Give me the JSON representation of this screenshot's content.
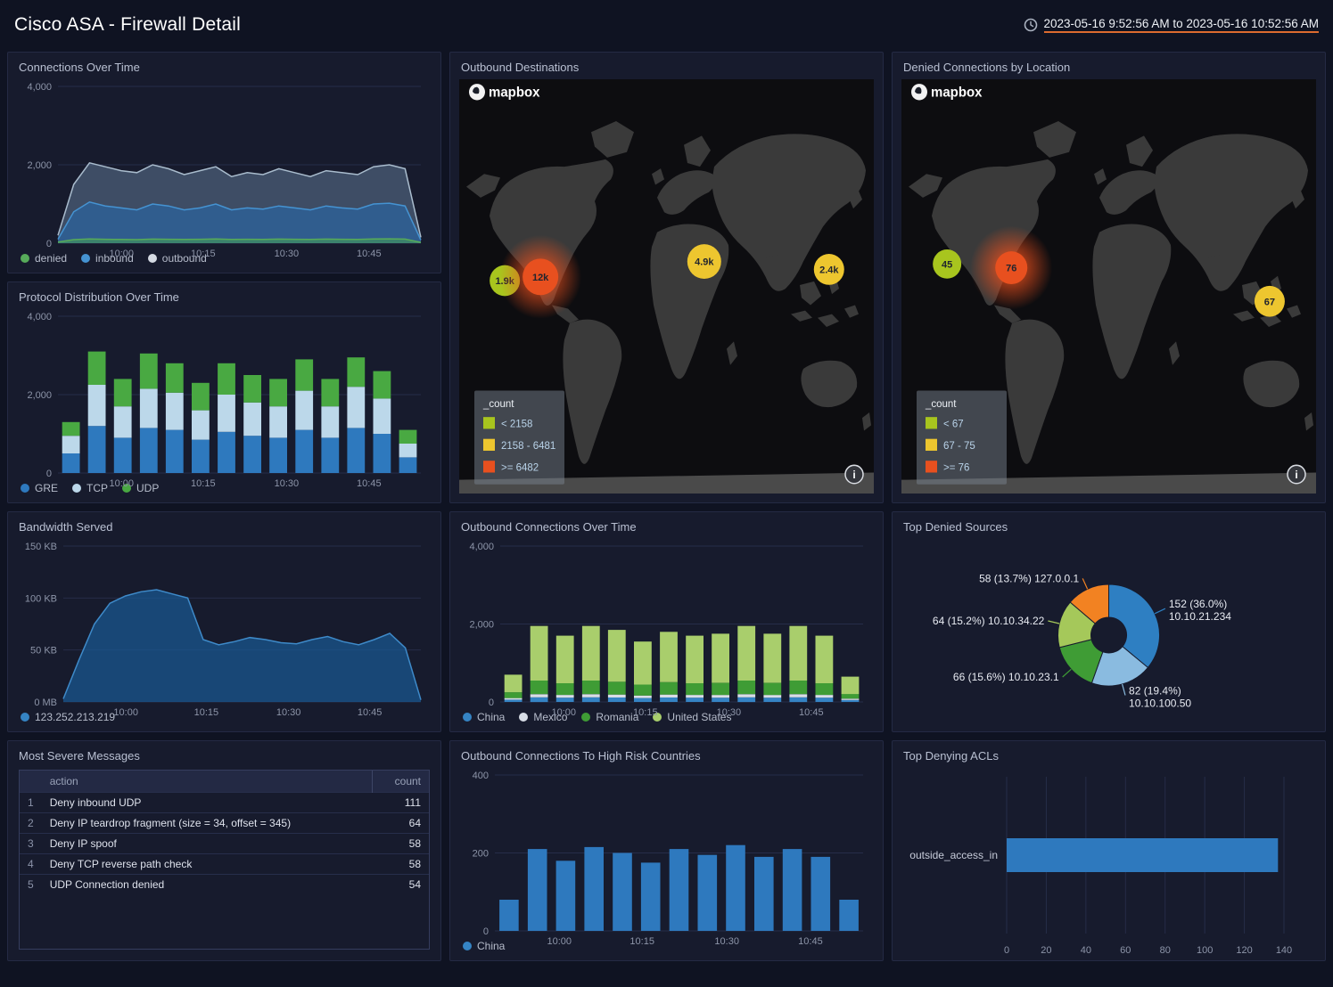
{
  "header": {
    "title": "Cisco ASA - Firewall Detail",
    "time_range": "2023-05-16 9:52:56 AM to 2023-05-16 10:52:56 AM"
  },
  "panels": {
    "connections_over_time": {
      "title": "Connections Over Time"
    },
    "outbound_destinations": {
      "title": "Outbound Destinations"
    },
    "denied_connections_by_location": {
      "title": "Denied Connections by Location"
    },
    "protocol_distribution_over_time": {
      "title": "Protocol Distribution Over Time"
    },
    "bandwidth_served": {
      "title": "Bandwidth Served"
    },
    "outbound_connections_over_time": {
      "title": "Outbound Connections Over Time"
    },
    "top_denied_sources": {
      "title": "Top Denied Sources"
    },
    "most_severe_messages": {
      "title": "Most Severe Messages"
    },
    "outbound_high_risk": {
      "title": "Outbound Connections To High Risk Countries"
    },
    "top_denying_acls": {
      "title": "Top Denying ACLs"
    }
  },
  "chart_data": {
    "connections_over_time": {
      "type": "area",
      "ylim": [
        0,
        4000
      ],
      "y_ticks": [
        {
          "v": 0,
          "label": "0"
        },
        {
          "v": 2000,
          "label": "2,000"
        },
        {
          "v": 4000,
          "label": "4,000"
        }
      ],
      "x_ticks": [
        {
          "f": 0.175,
          "label": "10:00"
        },
        {
          "f": 0.4,
          "label": "10:15"
        },
        {
          "f": 0.63,
          "label": "10:30"
        },
        {
          "f": 0.857,
          "label": "10:45"
        }
      ],
      "series": [
        {
          "name": "outbound",
          "color": "#a9bccd",
          "fill": "rgba(110,140,170,0.45)",
          "values": [
            200,
            1500,
            2050,
            1950,
            1850,
            1800,
            2000,
            1900,
            1750,
            1850,
            1950,
            1700,
            1800,
            1750,
            1900,
            1800,
            1700,
            1850,
            1800,
            1750,
            1950,
            2000,
            1900,
            150
          ]
        },
        {
          "name": "inbound",
          "color": "#4593d2",
          "fill": "rgba(40,105,170,0.6)",
          "values": [
            100,
            800,
            1050,
            950,
            900,
            850,
            1000,
            950,
            850,
            900,
            1000,
            850,
            900,
            870,
            950,
            900,
            850,
            950,
            900,
            870,
            1000,
            1020,
            950,
            80
          ]
        },
        {
          "name": "denied",
          "color": "#57ab5a",
          "fill": "rgba(70,160,80,0.55)",
          "values": [
            30,
            90,
            110,
            100,
            95,
            90,
            105,
            100,
            95,
            100,
            110,
            95,
            100,
            98,
            105,
            100,
            95,
            105,
            100,
            98,
            110,
            112,
            105,
            20
          ]
        }
      ],
      "legend": [
        {
          "label": "denied",
          "color": "#57ab5a"
        },
        {
          "label": "inbound",
          "color": "#4593d2"
        },
        {
          "label": "outbound",
          "color": "#d5dae3"
        }
      ]
    },
    "protocol_distribution_over_time": {
      "type": "stacked-bar",
      "ylim": [
        0,
        4000
      ],
      "y_ticks": [
        {
          "v": 0,
          "label": "0"
        },
        {
          "v": 2000,
          "label": "2,000"
        },
        {
          "v": 4000,
          "label": "4,000"
        }
      ],
      "x_ticks": [
        {
          "f": 0.175,
          "label": "10:00"
        },
        {
          "f": 0.4,
          "label": "10:15"
        },
        {
          "f": 0.63,
          "label": "10:30"
        },
        {
          "f": 0.857,
          "label": "10:45"
        }
      ],
      "series": [
        {
          "name": "GRE",
          "color": "#2e79be",
          "values": [
            500,
            1200,
            900,
            1150,
            1100,
            850,
            1050,
            950,
            900,
            1100,
            900,
            1150,
            1000,
            400
          ]
        },
        {
          "name": "TCP",
          "color": "#bcd8ea",
          "values": [
            450,
            1050,
            800,
            1000,
            950,
            750,
            950,
            850,
            800,
            1000,
            800,
            1050,
            900,
            350
          ]
        },
        {
          "name": "UDP",
          "color": "#49a942",
          "values": [
            350,
            850,
            700,
            900,
            750,
            700,
            800,
            700,
            700,
            800,
            700,
            750,
            700,
            350
          ]
        }
      ],
      "legend": [
        {
          "label": "GRE",
          "color": "#2e79be"
        },
        {
          "label": "TCP",
          "color": "#bcd8ea"
        },
        {
          "label": "UDP",
          "color": "#49a942"
        }
      ]
    },
    "bandwidth_served": {
      "type": "area",
      "margin_left": 52,
      "ylim": [
        0,
        150
      ],
      "y_ticks": [
        {
          "v": 0,
          "label": "0 MB"
        },
        {
          "v": 50,
          "label": "50 KB"
        },
        {
          "v": 100,
          "label": "100 KB"
        },
        {
          "v": 150,
          "label": "150 KB"
        }
      ],
      "x_ticks": [
        {
          "f": 0.175,
          "label": "10:00"
        },
        {
          "f": 0.4,
          "label": "10:15"
        },
        {
          "f": 0.63,
          "label": "10:30"
        },
        {
          "f": 0.857,
          "label": "10:45"
        }
      ],
      "series": [
        {
          "name": "123.252.213.219",
          "color": "#3e8ac9",
          "fill": "rgba(25,90,150,0.7)",
          "values": [
            3,
            40,
            75,
            95,
            102,
            106,
            108,
            104,
            100,
            60,
            55,
            58,
            62,
            60,
            57,
            56,
            60,
            63,
            58,
            55,
            60,
            66,
            52,
            2
          ]
        }
      ],
      "legend": [
        {
          "label": "123.252.213.219",
          "color": "#3584c4"
        }
      ]
    },
    "outbound_connections_over_time": {
      "type": "stacked-bar",
      "ylim": [
        0,
        4000
      ],
      "y_ticks": [
        {
          "v": 0,
          "label": "0"
        },
        {
          "v": 2000,
          "label": "2,000"
        },
        {
          "v": 4000,
          "label": "4,000"
        }
      ],
      "x_ticks": [
        {
          "f": 0.175,
          "label": "10:00"
        },
        {
          "f": 0.4,
          "label": "10:15"
        },
        {
          "f": 0.63,
          "label": "10:30"
        },
        {
          "f": 0.857,
          "label": "10:45"
        }
      ],
      "series": [
        {
          "name": "China",
          "color": "#3584c4",
          "values": [
            60,
            120,
            110,
            120,
            115,
            100,
            115,
            110,
            110,
            120,
            110,
            120,
            110,
            50
          ]
        },
        {
          "name": "Mexico",
          "color": "#d8dde6",
          "values": [
            40,
            80,
            70,
            80,
            75,
            65,
            75,
            70,
            70,
            80,
            70,
            80,
            70,
            35
          ]
        },
        {
          "name": "Romania",
          "color": "#3f9c35",
          "values": [
            150,
            350,
            300,
            350,
            330,
            280,
            320,
            300,
            310,
            350,
            310,
            350,
            300,
            120
          ]
        },
        {
          "name": "United States",
          "color": "#a9ce6c",
          "values": [
            450,
            1400,
            1220,
            1400,
            1330,
            1105,
            1290,
            1220,
            1260,
            1400,
            1260,
            1400,
            1220,
            445
          ]
        }
      ],
      "legend": [
        {
          "label": "China",
          "color": "#3584c4"
        },
        {
          "label": "Mexico",
          "color": "#d8dde6"
        },
        {
          "label": "Romania",
          "color": "#3f9c35"
        },
        {
          "label": "United States",
          "color": "#a9ce6c"
        }
      ]
    },
    "top_denied_sources": {
      "type": "donut",
      "slices": [
        {
          "name": "10.10.21.234",
          "value": 152,
          "pct": "36.0%",
          "value_label": "152 (36.0%)",
          "color": "#2e7fc2"
        },
        {
          "name": "10.10.100.50",
          "value": 82,
          "pct": "19.4%",
          "value_label": "82 (19.4%)",
          "color": "#8abbe0"
        },
        {
          "name": "10.10.23.1",
          "value": 66,
          "pct": "15.6%",
          "value_label": "66 (15.6%)",
          "color": "#3f9c35"
        },
        {
          "name": "10.10.34.22",
          "value": 64,
          "pct": "15.2%",
          "value_label": "64 (15.2%)",
          "color": "#a5c85a"
        },
        {
          "name": "127.0.0.1",
          "value": 58,
          "pct": "13.7%",
          "value_label": "58 (13.7%)",
          "color": "#f28222"
        }
      ]
    },
    "most_severe_messages": {
      "type": "table",
      "columns": [
        "action",
        "count"
      ],
      "rows": [
        {
          "rank": 1,
          "action": "Deny inbound UDP",
          "count": 111
        },
        {
          "rank": 2,
          "action": "Deny IP teardrop fragment (size = 34, offset = 345)",
          "count": 64
        },
        {
          "rank": 3,
          "action": "Deny IP spoof",
          "count": 58
        },
        {
          "rank": 4,
          "action": "Deny TCP reverse path check",
          "count": 58
        },
        {
          "rank": 5,
          "action": "UDP Connection denied",
          "count": 54
        }
      ]
    },
    "outbound_high_risk": {
      "type": "stacked-bar",
      "margin_left": 40,
      "ylim": [
        0,
        400
      ],
      "y_ticks": [
        {
          "v": 0,
          "label": "0"
        },
        {
          "v": 200,
          "label": "200"
        },
        {
          "v": 400,
          "label": "400"
        }
      ],
      "x_ticks": [
        {
          "f": 0.175,
          "label": "10:00"
        },
        {
          "f": 0.4,
          "label": "10:15"
        },
        {
          "f": 0.63,
          "label": "10:30"
        },
        {
          "f": 0.857,
          "label": "10:45"
        }
      ],
      "series": [
        {
          "name": "China",
          "color": "#2e79be",
          "values": [
            80,
            210,
            180,
            215,
            200,
            175,
            210,
            195,
            220,
            190,
            210,
            190,
            80
          ]
        }
      ],
      "legend": [
        {
          "label": "China",
          "color": "#3584c4"
        }
      ]
    },
    "top_denying_acls": {
      "type": "hbar",
      "xlim": [
        0,
        140
      ],
      "x_ticks": [
        {
          "v": 0,
          "label": "0"
        },
        {
          "v": 20,
          "label": "20"
        },
        {
          "v": 40,
          "label": "40"
        },
        {
          "v": 60,
          "label": "60"
        },
        {
          "v": 80,
          "label": "80"
        },
        {
          "v": 100,
          "label": "100"
        },
        {
          "v": 120,
          "label": "120"
        },
        {
          "v": 140,
          "label": "140"
        }
      ],
      "categories": [
        "outside_access_in"
      ],
      "values": [
        137
      ],
      "color": "#2e79be"
    },
    "outbound_destinations_map": {
      "type": "map",
      "logo": "mapbox",
      "legend_box": {
        "title": "_count",
        "items": [
          {
            "color": "#a8c51e",
            "label": "< 2158"
          },
          {
            "color": "#edc62f",
            "label": "2158 - 6481"
          },
          {
            "color": "#e8501f",
            "label": ">= 6482"
          }
        ]
      },
      "bubbles": [
        {
          "label": "1.9k",
          "color": "#a8c51e",
          "x": 0.11,
          "y": 0.486,
          "r": 17
        },
        {
          "label": "12k",
          "color": "#e8501f",
          "x": 0.196,
          "y": 0.477,
          "r": 20,
          "glow": true
        },
        {
          "label": "4.9k",
          "color": "#edc62f",
          "x": 0.591,
          "y": 0.44,
          "r": 19
        },
        {
          "label": "2.4k",
          "color": "#edc62f",
          "x": 0.892,
          "y": 0.459,
          "r": 17
        }
      ]
    },
    "denied_connections_map": {
      "type": "map",
      "logo": "mapbox",
      "legend_box": {
        "title": "_count",
        "items": [
          {
            "color": "#a8c51e",
            "label": "< 67"
          },
          {
            "color": "#edc62f",
            "label": "67 - 75"
          },
          {
            "color": "#e8501f",
            "label": ">= 76"
          }
        ]
      },
      "bubbles": [
        {
          "label": "45",
          "color": "#a8c51e",
          "x": 0.11,
          "y": 0.446,
          "r": 16
        },
        {
          "label": "76",
          "color": "#e8501f",
          "x": 0.265,
          "y": 0.455,
          "r": 18,
          "glow": true
        },
        {
          "label": "67",
          "color": "#edc62f",
          "x": 0.888,
          "y": 0.536,
          "r": 17
        }
      ]
    }
  }
}
